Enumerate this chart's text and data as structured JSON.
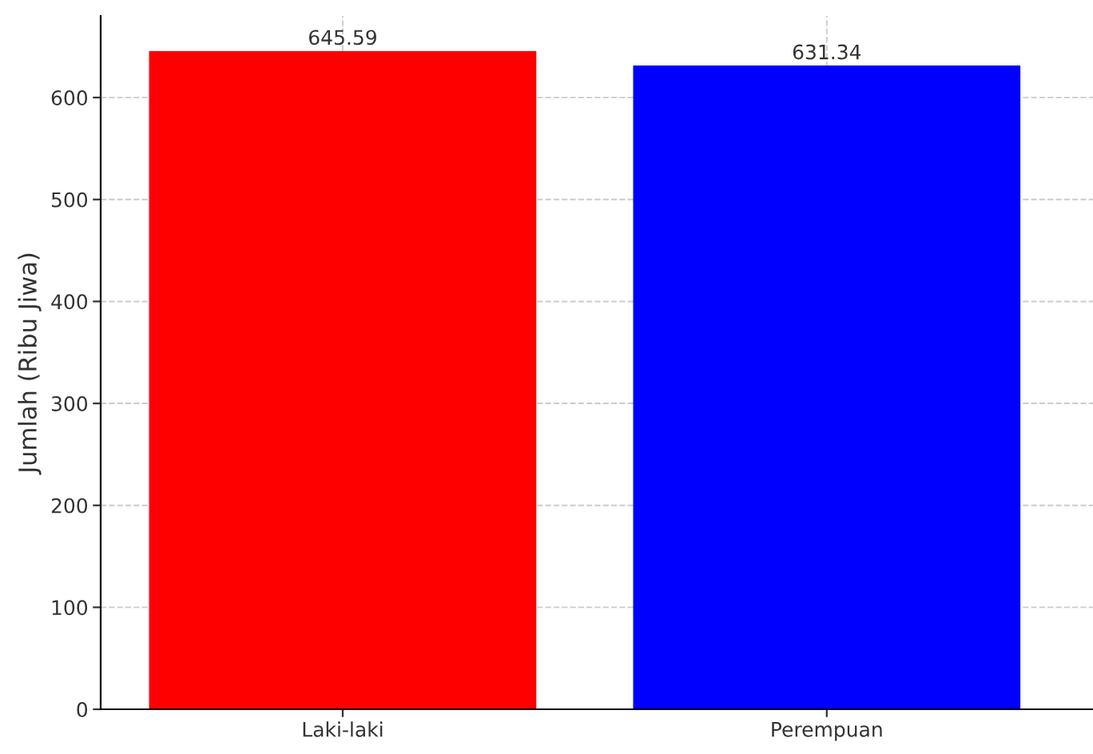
{
  "chart_data": {
    "type": "bar",
    "ylabel": "Jumlah (Ribu Jiwa)",
    "categories": [
      "Laki-laki",
      "Perempuan"
    ],
    "values": [
      645.59,
      631.34
    ],
    "colors": [
      "#ff0000",
      "#0000ff"
    ],
    "ylim": [
      0,
      680
    ],
    "yticks": [
      0,
      100,
      200,
      300,
      400,
      500,
      600
    ],
    "grid": true,
    "data_labels": true
  }
}
